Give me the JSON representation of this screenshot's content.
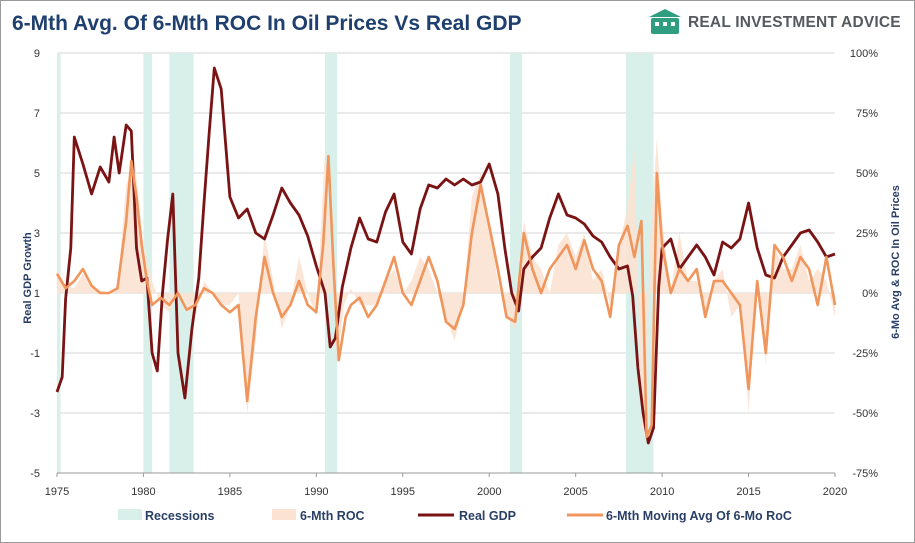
{
  "header": {
    "title": "6-Mth Avg. Of 6-Mth ROC In Oil Prices Vs Real GDP",
    "brand": "REAL INVESTMENT ADVICE",
    "brand_icon": "bank-logo-icon",
    "brand_color": "#2f9e80"
  },
  "chart_data": {
    "type": "line",
    "title": "6-Mth Avg. Of 6-Mth ROC In Oil Prices Vs Real GDP",
    "ylabel": "Real GDP Growth",
    "y2label": "6-Mo Avg & ROC In Oil Prices",
    "xlim": [
      1975,
      2020
    ],
    "ylim": [
      -5,
      9
    ],
    "y2lim": [
      -0.75,
      1.0
    ],
    "x_ticks": [
      "1975",
      "1980",
      "1985",
      "1990",
      "1995",
      "2000",
      "2005",
      "2010",
      "2015",
      "2020"
    ],
    "y_ticks": [
      "9",
      "7",
      "5",
      "3",
      "1",
      "-1",
      "-3",
      "-5"
    ],
    "y2_ticks": [
      "100%",
      "75%",
      "50%",
      "25%",
      "0%",
      "-25%",
      "-50%",
      "-75%"
    ],
    "grid": true,
    "legend_position": "bottom",
    "recessions": [
      [
        1975.0,
        1975.2
      ],
      [
        1980.0,
        1980.5
      ],
      [
        1981.5,
        1982.9
      ],
      [
        1990.5,
        1991.2
      ],
      [
        2001.2,
        2001.9
      ],
      [
        2007.9,
        2009.5
      ]
    ],
    "series": [
      {
        "name": "Recessions",
        "kind": "band",
        "color": "#d9efea"
      },
      {
        "name": "6-Mth ROC",
        "kind": "area",
        "axis": "right",
        "color": "#fbe2d2",
        "x": [
          1975.0,
          1975.5,
          1976.0,
          1976.5,
          1977.0,
          1977.5,
          1978.0,
          1978.5,
          1979.0,
          1979.5,
          1980.0,
          1980.5,
          1981.0,
          1981.5,
          1982.0,
          1982.5,
          1983.0,
          1983.5,
          1984.0,
          1984.5,
          1985.0,
          1985.5,
          1986.0,
          1986.5,
          1987.0,
          1987.5,
          1988.0,
          1988.5,
          1989.0,
          1989.5,
          1990.0,
          1990.5,
          1990.9,
          1991.2,
          1991.6,
          1992.0,
          1992.5,
          1993.0,
          1993.5,
          1994.0,
          1994.5,
          1995.0,
          1995.5,
          1996.0,
          1996.5,
          1997.0,
          1997.5,
          1998.0,
          1998.5,
          1999.0,
          1999.5,
          2000.0,
          2000.5,
          2001.0,
          2001.5,
          2002.0,
          2002.5,
          2003.0,
          2003.5,
          2004.0,
          2004.5,
          2005.0,
          2005.5,
          2006.0,
          2006.5,
          2007.0,
          2007.5,
          2008.0,
          2008.4,
          2008.8,
          2009.0,
          2009.3,
          2009.7,
          2010.0,
          2010.5,
          2011.0,
          2011.5,
          2012.0,
          2012.5,
          2013.0,
          2013.5,
          2014.0,
          2014.5,
          2015.0,
          2015.5,
          2016.0,
          2016.5,
          2017.0,
          2017.5,
          2018.0,
          2018.5,
          2019.0,
          2019.5,
          2020.0
        ],
        "values": [
          0.1,
          0.03,
          0.02,
          0.08,
          0.02,
          0.01,
          0.0,
          0.02,
          0.45,
          0.55,
          0.2,
          0.05,
          -0.05,
          -0.08,
          0.02,
          -0.05,
          -0.1,
          0.05,
          0.0,
          -0.05,
          -0.05,
          0.0,
          -0.5,
          -0.2,
          0.25,
          0.05,
          -0.15,
          -0.05,
          0.15,
          0.0,
          -0.1,
          0.6,
          0.1,
          -0.3,
          -0.05,
          0.02,
          -0.05,
          -0.05,
          -0.05,
          0.05,
          0.1,
          0.0,
          0.05,
          0.15,
          0.1,
          0.0,
          -0.1,
          -0.2,
          -0.05,
          0.4,
          0.5,
          0.3,
          0.05,
          -0.1,
          -0.15,
          0.3,
          0.15,
          0.1,
          0.0,
          0.2,
          0.25,
          0.15,
          0.25,
          0.05,
          0.1,
          -0.05,
          0.2,
          0.35,
          0.6,
          -0.55,
          -0.6,
          0.2,
          0.65,
          0.3,
          0.0,
          0.25,
          0.05,
          0.05,
          -0.1,
          0.05,
          0.1,
          -0.1,
          -0.05,
          -0.5,
          0.05,
          -0.3,
          0.2,
          0.1,
          0.1,
          0.2,
          0.05,
          0.1,
          0.05,
          -0.1
        ]
      },
      {
        "name": "Real GDP",
        "kind": "line",
        "axis": "left",
        "color": "#7a1414",
        "x": [
          1975.0,
          1975.3,
          1975.5,
          1975.8,
          1976.0,
          1976.5,
          1977.0,
          1977.5,
          1978.0,
          1978.3,
          1978.6,
          1979.0,
          1979.3,
          1979.6,
          1979.9,
          1980.2,
          1980.5,
          1980.8,
          1981.1,
          1981.4,
          1981.7,
          1982.0,
          1982.4,
          1982.8,
          1983.2,
          1983.5,
          1983.8,
          1984.1,
          1984.5,
          1985.0,
          1985.5,
          1986.0,
          1986.5,
          1987.0,
          1987.5,
          1988.0,
          1988.5,
          1989.0,
          1989.5,
          1990.0,
          1990.5,
          1990.8,
          1991.1,
          1991.5,
          1992.0,
          1992.5,
          1993.0,
          1993.5,
          1994.0,
          1994.5,
          1995.0,
          1995.5,
          1996.0,
          1996.5,
          1997.0,
          1997.5,
          1998.0,
          1998.5,
          1999.0,
          1999.5,
          2000.0,
          2000.5,
          2000.9,
          2001.3,
          2001.7,
          2002.0,
          2002.5,
          2003.0,
          2003.5,
          2004.0,
          2004.5,
          2005.0,
          2005.5,
          2006.0,
          2006.5,
          2007.0,
          2007.5,
          2008.0,
          2008.3,
          2008.6,
          2008.9,
          2009.2,
          2009.5,
          2009.8,
          2010.0,
          2010.5,
          2011.0,
          2011.5,
          2012.0,
          2012.5,
          2013.0,
          2013.5,
          2014.0,
          2014.5,
          2015.0,
          2015.5,
          2016.0,
          2016.5,
          2017.0,
          2017.5,
          2018.0,
          2018.5,
          2019.0,
          2019.5,
          2020.0
        ],
        "values": [
          -2.3,
          -1.8,
          0.8,
          2.5,
          6.2,
          5.3,
          4.3,
          5.2,
          4.7,
          6.2,
          5.0,
          6.6,
          6.4,
          2.5,
          1.4,
          1.5,
          -1.0,
          -1.6,
          1.0,
          2.8,
          4.3,
          -1.0,
          -2.5,
          -0.2,
          1.5,
          4.0,
          6.3,
          8.5,
          7.8,
          4.2,
          3.5,
          3.8,
          3.0,
          2.8,
          3.6,
          4.5,
          4.0,
          3.6,
          2.9,
          1.9,
          1.0,
          -0.8,
          -0.5,
          1.2,
          2.5,
          3.5,
          2.8,
          2.7,
          3.7,
          4.3,
          2.7,
          2.3,
          3.8,
          4.6,
          4.5,
          4.8,
          4.6,
          4.8,
          4.6,
          4.7,
          5.3,
          4.3,
          2.5,
          1.0,
          0.4,
          1.8,
          2.2,
          2.5,
          3.5,
          4.3,
          3.6,
          3.5,
          3.3,
          2.9,
          2.7,
          2.2,
          1.8,
          1.9,
          0.9,
          -1.5,
          -3.0,
          -4.0,
          -3.5,
          1.2,
          2.5,
          2.8,
          1.8,
          2.2,
          2.6,
          2.2,
          1.6,
          2.7,
          2.5,
          2.8,
          4.0,
          2.5,
          1.6,
          1.5,
          2.2,
          2.6,
          3.0,
          3.1,
          2.7,
          2.2,
          2.3
        ]
      },
      {
        "name": "6-Mth Moving Avg Of 6-Mo RoC",
        "kind": "line",
        "axis": "right",
        "color": "#f0955c",
        "x": [
          1975.0,
          1975.5,
          1976.0,
          1976.5,
          1977.0,
          1977.5,
          1978.0,
          1978.5,
          1979.0,
          1979.3,
          1979.6,
          1979.9,
          1980.2,
          1980.5,
          1981.0,
          1981.5,
          1982.0,
          1982.5,
          1983.0,
          1983.5,
          1984.0,
          1984.5,
          1985.0,
          1985.5,
          1986.0,
          1986.5,
          1987.0,
          1987.5,
          1988.0,
          1988.5,
          1989.0,
          1989.5,
          1990.0,
          1990.4,
          1990.7,
          1991.0,
          1991.3,
          1991.7,
          1992.0,
          1992.5,
          1993.0,
          1993.5,
          1994.0,
          1994.5,
          1995.0,
          1995.5,
          1996.0,
          1996.5,
          1997.0,
          1997.5,
          1998.0,
          1998.5,
          1999.0,
          1999.5,
          2000.0,
          2000.5,
          2001.0,
          2001.5,
          2002.0,
          2002.5,
          2003.0,
          2003.5,
          2004.0,
          2004.5,
          2005.0,
          2005.5,
          2006.0,
          2006.5,
          2007.0,
          2007.5,
          2008.0,
          2008.4,
          2008.8,
          2009.1,
          2009.4,
          2009.7,
          2010.0,
          2010.5,
          2011.0,
          2011.5,
          2012.0,
          2012.5,
          2013.0,
          2013.5,
          2014.0,
          2014.5,
          2015.0,
          2015.5,
          2016.0,
          2016.5,
          2017.0,
          2017.5,
          2018.0,
          2018.5,
          2019.0,
          2019.5,
          2020.0
        ],
        "values": [
          0.08,
          0.02,
          0.05,
          0.1,
          0.03,
          0.0,
          0.0,
          0.02,
          0.3,
          0.55,
          0.4,
          0.2,
          0.05,
          -0.05,
          -0.02,
          -0.05,
          0.0,
          -0.07,
          -0.05,
          0.02,
          0.0,
          -0.05,
          -0.08,
          -0.05,
          -0.45,
          -0.1,
          0.15,
          0.0,
          -0.1,
          -0.05,
          0.05,
          -0.05,
          -0.08,
          0.2,
          0.57,
          0.1,
          -0.28,
          -0.1,
          -0.05,
          -0.02,
          -0.1,
          -0.05,
          0.05,
          0.15,
          0.0,
          -0.05,
          0.05,
          0.15,
          0.05,
          -0.12,
          -0.15,
          -0.05,
          0.25,
          0.45,
          0.28,
          0.1,
          -0.1,
          -0.12,
          0.25,
          0.1,
          0.0,
          0.1,
          0.15,
          0.2,
          0.1,
          0.22,
          0.1,
          0.05,
          -0.1,
          0.2,
          0.28,
          0.15,
          0.3,
          -0.6,
          -0.55,
          0.5,
          0.2,
          0.0,
          0.1,
          0.05,
          0.1,
          -0.1,
          0.05,
          0.05,
          0.0,
          -0.05,
          -0.4,
          0.05,
          -0.25,
          0.2,
          0.15,
          0.05,
          0.15,
          0.1,
          -0.05,
          0.15,
          -0.05
        ]
      }
    ]
  }
}
